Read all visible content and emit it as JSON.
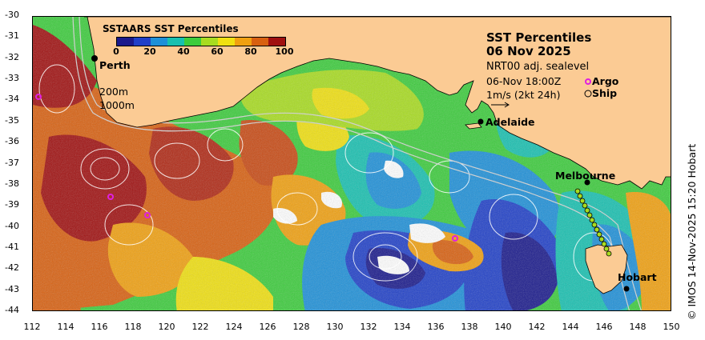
{
  "legend": {
    "title": "SSTAARS SST Percentiles",
    "ticks": [
      "0",
      "20",
      "40",
      "60",
      "80",
      "100"
    ],
    "colors": [
      "#1a1a8c",
      "#2040c8",
      "#1e90d8",
      "#18c0b0",
      "#3ccc3c",
      "#a8dc20",
      "#f0e010",
      "#f0a010",
      "#d86010",
      "#a01010"
    ]
  },
  "title": {
    "line1": "SST Percentiles",
    "line2": "06 Nov 2025"
  },
  "info": {
    "product": "NRT00 adj. sealevel",
    "time": "06-Nov 18:00Z",
    "vector_scale": "1m/s (2kt 24h)",
    "argo_label": "Argo",
    "ship_label": "Ship"
  },
  "contours": {
    "c200": "200m",
    "c1000": "1000m"
  },
  "cities": {
    "perth": "Perth",
    "adelaide": "Adelaide",
    "melbourne": "Melbourne",
    "hobart": "Hobart"
  },
  "credit": "© IMOS 14-Nov-2025 15:20 Hobart",
  "axes": {
    "y_ticks": [
      "-30",
      "-31",
      "-32",
      "-33",
      "-34",
      "-35",
      "-36",
      "-37",
      "-38",
      "-39",
      "-40",
      "-41",
      "-42",
      "-43",
      "-44"
    ],
    "x_ticks": [
      "112",
      "114",
      "116",
      "118",
      "120",
      "122",
      "124",
      "126",
      "128",
      "130",
      "132",
      "134",
      "136",
      "138",
      "140",
      "142",
      "144",
      "146",
      "148",
      "150"
    ]
  },
  "colors": {
    "land": "#fbcb94",
    "warm": "#c8502a",
    "cold": "#1a3cb0",
    "mid": "#38c060"
  }
}
